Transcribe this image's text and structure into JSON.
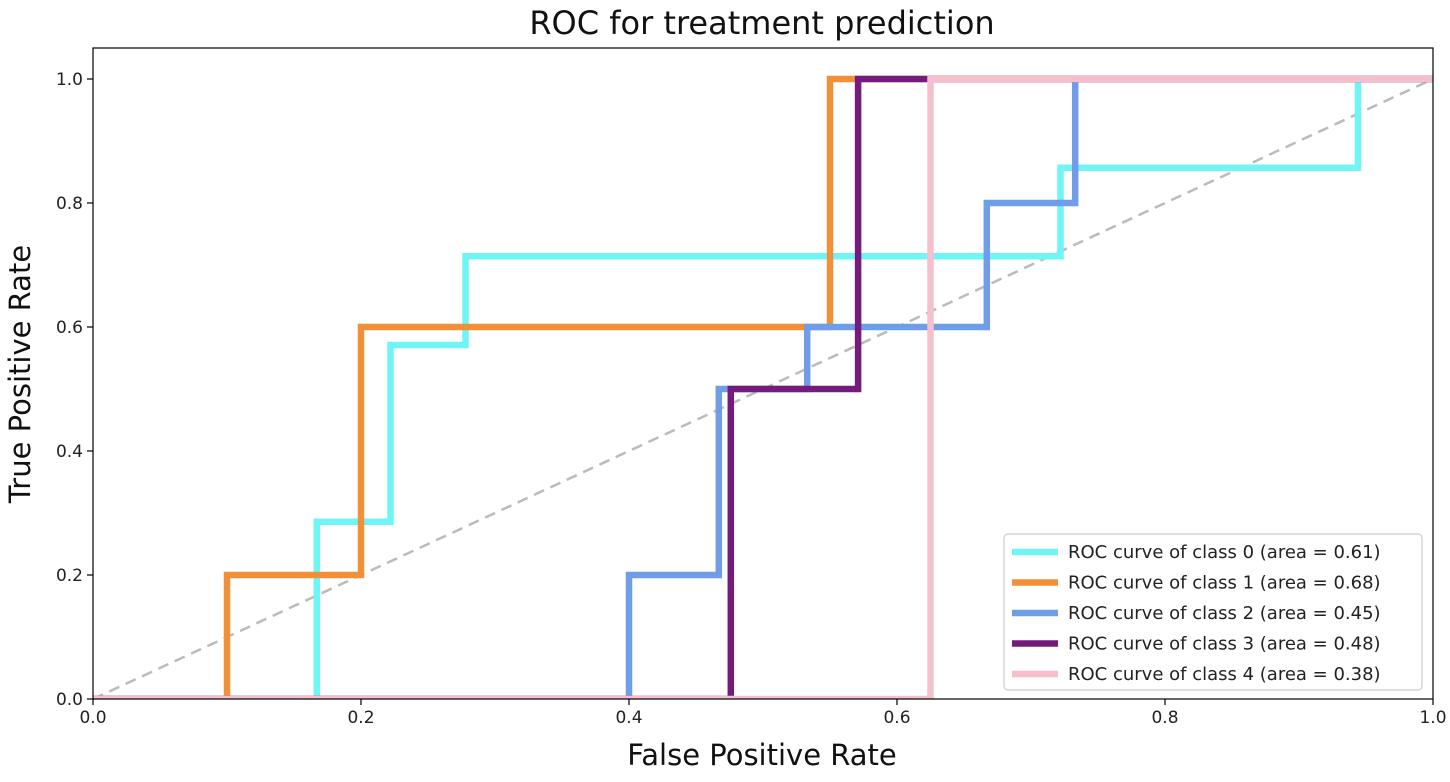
{
  "chart_data": {
    "type": "line",
    "title": "ROC for treatment prediction",
    "xlabel": "False Positive Rate",
    "ylabel": "True Positive Rate",
    "xlim": [
      0,
      1
    ],
    "ylim": [
      0,
      1.05
    ],
    "xticks": [
      0.0,
      0.2,
      0.4,
      0.6,
      0.8,
      1.0
    ],
    "yticks": [
      0.0,
      0.2,
      0.4,
      0.6,
      0.8,
      1.0
    ],
    "xtick_labels": [
      "0.0",
      "0.2",
      "0.4",
      "0.6",
      "0.8",
      "1.0"
    ],
    "ytick_labels": [
      "0.0",
      "0.2",
      "0.4",
      "0.6",
      "0.8",
      "1.0"
    ],
    "grid": false,
    "legend_position": "lower-right",
    "reference_line": {
      "x": [
        0,
        1
      ],
      "y": [
        0,
        1
      ],
      "color": "#bbbbbb",
      "style": "dashed"
    },
    "series": [
      {
        "name": "ROC curve of class 0 (area = 0.61)",
        "color": "#6ff5f5",
        "x": [
          0,
          0.167,
          0.167,
          0.167,
          0.222,
          0.222,
          0.278,
          0.278,
          0.722,
          0.722,
          0.944,
          0.944,
          1.0
        ],
        "y": [
          0,
          0,
          0.143,
          0.286,
          0.286,
          0.571,
          0.571,
          0.714,
          0.714,
          0.857,
          0.857,
          1.0,
          1.0
        ]
      },
      {
        "name": "ROC curve of class 1 (area = 0.68)",
        "color": "#f0913a",
        "x": [
          0,
          0.1,
          0.1,
          0.2,
          0.2,
          0.55,
          0.55,
          1.0
        ],
        "y": [
          0,
          0,
          0.2,
          0.2,
          0.6,
          0.6,
          1.0,
          1.0
        ]
      },
      {
        "name": "ROC curve of class 2 (area = 0.45)",
        "color": "#6f9de8",
        "x": [
          0,
          0.4,
          0.4,
          0.467,
          0.467,
          0.533,
          0.533,
          0.667,
          0.667,
          0.733,
          0.733,
          1.0
        ],
        "y": [
          0,
          0,
          0.2,
          0.2,
          0.5,
          0.5,
          0.6,
          0.6,
          0.8,
          0.8,
          1.0,
          1.0
        ]
      },
      {
        "name": "ROC curve of class 3 (area = 0.48)",
        "color": "#751b7e",
        "x": [
          0,
          0.476,
          0.476,
          0.571,
          0.571,
          1.0
        ],
        "y": [
          0,
          0,
          0.5,
          0.5,
          1.0,
          1.0
        ]
      },
      {
        "name": "ROC curve of class 4 (area = 0.38)",
        "color": "#f5bfcb",
        "x": [
          0,
          0.625,
          0.625,
          1.0
        ],
        "y": [
          0,
          0,
          1.0,
          1.0
        ]
      }
    ]
  }
}
